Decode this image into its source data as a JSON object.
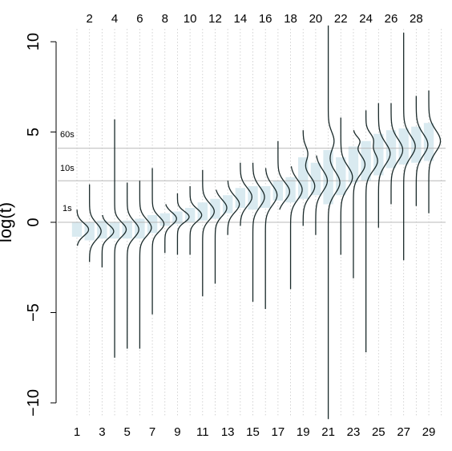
{
  "chart_data": {
    "type": "violin",
    "ylabel": "log(t)",
    "ylim": [
      -10,
      10
    ],
    "xlim": [
      0.3,
      30.4
    ],
    "y_ticks": [
      -10,
      -5,
      0,
      5,
      10
    ],
    "y_tick_labels": [
      "−10",
      "−5",
      "0",
      "5",
      "10"
    ],
    "x_ticks_bottom": [
      1,
      3,
      5,
      7,
      9,
      11,
      13,
      15,
      17,
      19,
      21,
      23,
      25,
      27,
      29
    ],
    "x_tick_labels_bottom": [
      "1",
      "3",
      "5",
      "7",
      "9",
      "11",
      "13",
      "15",
      "17",
      "19",
      "21",
      "23",
      "25",
      "27",
      "29"
    ],
    "x_ticks_top": [
      2,
      4,
      6,
      8,
      10,
      12,
      14,
      16,
      18,
      20,
      22,
      24,
      26,
      28
    ],
    "x_tick_labels_top": [
      "2",
      "4",
      "6",
      "8",
      "10",
      "12",
      "14",
      "16",
      "18",
      "20",
      "22",
      "24",
      "26",
      "28"
    ],
    "reference_lines": [
      {
        "label": "1s",
        "value": 0
      },
      {
        "label": "10s",
        "value": 2.3
      },
      {
        "label": "60s",
        "value": 4.1
      }
    ],
    "grid": "vertical dotted lines at every integer x",
    "colors": {
      "box": "#d9eaf0",
      "curve": "#1a2a2a",
      "ref_line": "#b8b8b8",
      "grid": "#c8c8c8"
    },
    "groups": [
      {
        "x": 1,
        "min": -1.3,
        "max": 0.7,
        "q1": -0.8,
        "q3": 0.0,
        "modes": [
          [
            -0.4,
            1.0,
            0.35
          ]
        ]
      },
      {
        "x": 2,
        "min": -2.2,
        "max": 2.1,
        "q1": -1.0,
        "q3": 0.0,
        "modes": [
          [
            -0.5,
            1.0,
            0.45
          ]
        ]
      },
      {
        "x": 3,
        "min": -2.5,
        "max": 0.4,
        "q1": -0.9,
        "q3": 0.1,
        "modes": [
          [
            -0.5,
            1.0,
            0.35
          ]
        ]
      },
      {
        "x": 4,
        "min": -7.5,
        "max": 5.7,
        "q1": -0.9,
        "q3": 0.0,
        "modes": [
          [
            -0.4,
            1.0,
            0.4
          ]
        ]
      },
      {
        "x": 5,
        "min": -7.0,
        "max": 2.2,
        "q1": -0.9,
        "q3": 0.1,
        "modes": [
          [
            -0.4,
            1.0,
            0.45
          ]
        ]
      },
      {
        "x": 6,
        "min": -7.0,
        "max": 2.3,
        "q1": -0.9,
        "q3": 0.2,
        "modes": [
          [
            -0.3,
            1.0,
            0.45
          ]
        ]
      },
      {
        "x": 7,
        "min": -5.1,
        "max": 3.0,
        "q1": -0.6,
        "q3": 0.4,
        "modes": [
          [
            -0.1,
            1.0,
            0.4
          ]
        ]
      },
      {
        "x": 8,
        "min": -1.7,
        "max": 1.0,
        "q1": -0.2,
        "q3": 0.5,
        "modes": [
          [
            0.2,
            1.0,
            0.35
          ]
        ]
      },
      {
        "x": 9,
        "min": -1.8,
        "max": 1.6,
        "q1": -0.1,
        "q3": 0.6,
        "modes": [
          [
            0.3,
            1.0,
            0.3
          ]
        ]
      },
      {
        "x": 10,
        "min": -1.8,
        "max": 2.0,
        "q1": 0.0,
        "q3": 0.8,
        "modes": [
          [
            0.4,
            1.0,
            0.35
          ]
        ]
      },
      {
        "x": 11,
        "min": -4.1,
        "max": 2.9,
        "q1": 0.1,
        "q3": 1.1,
        "modes": [
          [
            0.6,
            1.0,
            0.45
          ]
        ]
      },
      {
        "x": 12,
        "min": -3.4,
        "max": 1.8,
        "q1": 0.2,
        "q3": 1.3,
        "modes": [
          [
            0.8,
            1.0,
            0.45
          ]
        ]
      },
      {
        "x": 13,
        "min": -0.7,
        "max": 2.3,
        "q1": 0.5,
        "q3": 1.5,
        "modes": [
          [
            1.0,
            1.0,
            0.45
          ]
        ]
      },
      {
        "x": 14,
        "min": -0.2,
        "max": 3.3,
        "q1": 0.8,
        "q3": 1.9,
        "modes": [
          [
            1.4,
            1.0,
            0.5
          ]
        ]
      },
      {
        "x": 15,
        "min": -4.4,
        "max": 3.3,
        "q1": 0.7,
        "q3": 2.0,
        "modes": [
          [
            1.4,
            1.0,
            0.55
          ]
        ]
      },
      {
        "x": 16,
        "min": -4.8,
        "max": 3.0,
        "q1": 0.8,
        "q3": 2.0,
        "modes": [
          [
            1.5,
            1.0,
            0.55
          ]
        ]
      },
      {
        "x": 17,
        "min": 0.7,
        "max": 4.5,
        "q1": 1.2,
        "q3": 2.3,
        "modes": [
          [
            1.7,
            1.0,
            0.5
          ]
        ]
      },
      {
        "x": 18,
        "min": -3.7,
        "max": 3.1,
        "q1": 1.1,
        "q3": 2.5,
        "modes": [
          [
            1.8,
            1.0,
            0.55
          ]
        ]
      },
      {
        "x": 19,
        "min": -0.2,
        "max": 5.1,
        "q1": 1.3,
        "q3": 3.6,
        "modes": [
          [
            2.0,
            1.0,
            0.55
          ],
          [
            3.8,
            0.4,
            0.4
          ]
        ]
      },
      {
        "x": 20,
        "min": -0.7,
        "max": 3.7,
        "q1": 1.5,
        "q3": 3.3,
        "modes": [
          [
            2.3,
            1.0,
            0.6
          ]
        ]
      },
      {
        "x": 21,
        "min": -10.9,
        "max": 10.9,
        "q1": 1.0,
        "q3": 4.0,
        "modes": [
          [
            2.2,
            1.0,
            0.6
          ],
          [
            4.5,
            0.5,
            0.5
          ]
        ]
      },
      {
        "x": 22,
        "min": -1.8,
        "max": 5.8,
        "q1": 1.5,
        "q3": 3.6,
        "modes": [
          [
            2.5,
            1.0,
            0.6
          ]
        ]
      },
      {
        "x": 23,
        "min": -3.1,
        "max": 5.1,
        "q1": 2.2,
        "q3": 4.2,
        "modes": [
          [
            3.2,
            1.0,
            0.55
          ],
          [
            4.5,
            0.5,
            0.25
          ]
        ]
      },
      {
        "x": 24,
        "min": -7.2,
        "max": 6.2,
        "q1": 2.3,
        "q3": 4.5,
        "modes": [
          [
            3.4,
            1.0,
            0.55
          ],
          [
            4.6,
            0.55,
            0.35
          ]
        ]
      },
      {
        "x": 25,
        "min": -0.3,
        "max": 6.6,
        "q1": 2.6,
        "q3": 4.9,
        "modes": [
          [
            3.8,
            1.0,
            0.6
          ]
        ]
      },
      {
        "x": 26,
        "min": 1.0,
        "max": 6.6,
        "q1": 3.0,
        "q3": 5.1,
        "modes": [
          [
            4.0,
            1.0,
            0.6
          ]
        ]
      },
      {
        "x": 27,
        "min": -2.1,
        "max": 10.5,
        "q1": 3.2,
        "q3": 5.2,
        "modes": [
          [
            4.2,
            1.0,
            0.6
          ]
        ]
      },
      {
        "x": 28,
        "min": 0.9,
        "max": 7.0,
        "q1": 3.3,
        "q3": 5.3,
        "modes": [
          [
            4.3,
            1.0,
            0.6
          ]
        ]
      },
      {
        "x": 29,
        "min": 0.5,
        "max": 7.3,
        "q1": 3.4,
        "q3": 5.5,
        "modes": [
          [
            4.5,
            1.0,
            0.6
          ]
        ]
      }
    ]
  }
}
